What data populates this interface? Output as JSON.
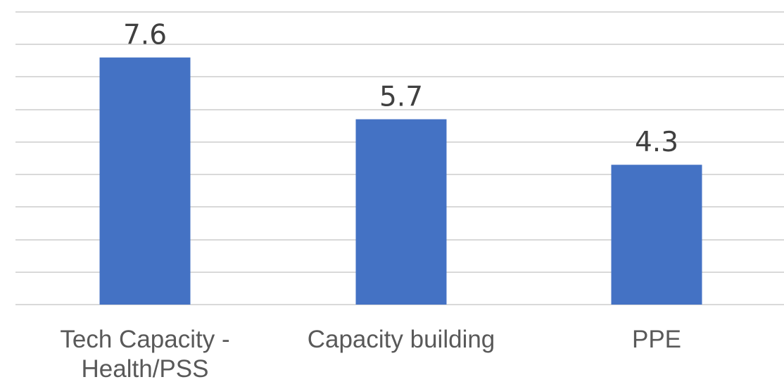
{
  "chart_data": {
    "type": "bar",
    "title": "",
    "xlabel": "",
    "ylabel": "",
    "categories": [
      [
        "Tech Capacity -",
        "Health/PSS"
      ],
      [
        "Capacity building"
      ],
      [
        "PPE"
      ]
    ],
    "values": [
      7.6,
      5.7,
      4.3
    ],
    "data_labels": [
      "7.6",
      "5.7",
      "4.3"
    ],
    "ylim": [
      0,
      9
    ],
    "y_major_unit": 1,
    "grid": true,
    "y_axis_labels_shown": false,
    "legend": "none",
    "bar_color": "#4472c4",
    "grid_color": "#d9d9d9",
    "label_color": "#404040",
    "tick_color": "#595959"
  }
}
